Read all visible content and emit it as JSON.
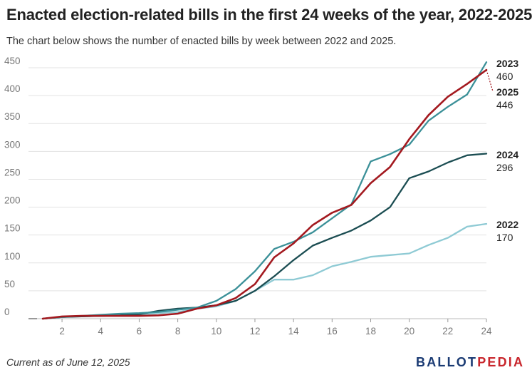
{
  "header": {
    "title": "Enacted election-related bills in the first 24 weeks of the year, 2022-2025",
    "subtitle": "The chart below shows the number of enacted bills by week between 2022 and 2025."
  },
  "footer": {
    "note": "Current as of June 12, 2025",
    "logo_part1": "BALLOT",
    "logo_part2": "PEDIA"
  },
  "chart_data": {
    "type": "line",
    "xlabel": "",
    "ylabel": "",
    "xlim": [
      1,
      24
    ],
    "ylim": [
      0,
      450
    ],
    "x_ticks": [
      2,
      4,
      6,
      8,
      10,
      12,
      14,
      16,
      18,
      20,
      22,
      24
    ],
    "y_ticks": [
      0,
      50,
      100,
      150,
      200,
      250,
      300,
      350,
      400,
      450
    ],
    "y_tick_labels": [
      "0",
      "50",
      "100",
      "150",
      "200",
      "250",
      "300",
      "350",
      "400",
      "450"
    ],
    "grid": "horizontal",
    "legend": "direct labels at line ends",
    "x": [
      1,
      2,
      3,
      4,
      5,
      6,
      7,
      8,
      9,
      10,
      11,
      12,
      13,
      14,
      15,
      16,
      17,
      18,
      19,
      20,
      21,
      22,
      23,
      24
    ],
    "series": [
      {
        "name": "2022",
        "color": "#8ecad4",
        "end_label": "170",
        "values": [
          0,
          3,
          4,
          5,
          6,
          7,
          10,
          12,
          18,
          22,
          32,
          50,
          70,
          70,
          78,
          94,
          102,
          111,
          114,
          117,
          132,
          145,
          165,
          170
        ]
      },
      {
        "name": "2024",
        "color": "#1b4d52",
        "end_label": "296",
        "values": [
          0,
          3,
          4,
          5,
          6,
          8,
          14,
          18,
          20,
          24,
          32,
          50,
          76,
          105,
          131,
          145,
          158,
          176,
          200,
          252,
          264,
          280,
          293,
          296
        ]
      },
      {
        "name": "2023",
        "color": "#3b9098",
        "end_label": "460",
        "values": [
          0,
          3,
          5,
          7,
          9,
          10,
          12,
          16,
          20,
          32,
          53,
          85,
          125,
          138,
          155,
          180,
          205,
          282,
          295,
          312,
          355,
          380,
          402,
          460
        ]
      },
      {
        "name": "2025",
        "color": "#a3191f",
        "end_label": "446",
        "values": [
          0,
          4,
          5,
          5,
          5,
          5,
          6,
          9,
          18,
          24,
          37,
          62,
          110,
          135,
          168,
          190,
          204,
          243,
          272,
          322,
          365,
          398,
          421,
          446
        ]
      }
    ]
  }
}
